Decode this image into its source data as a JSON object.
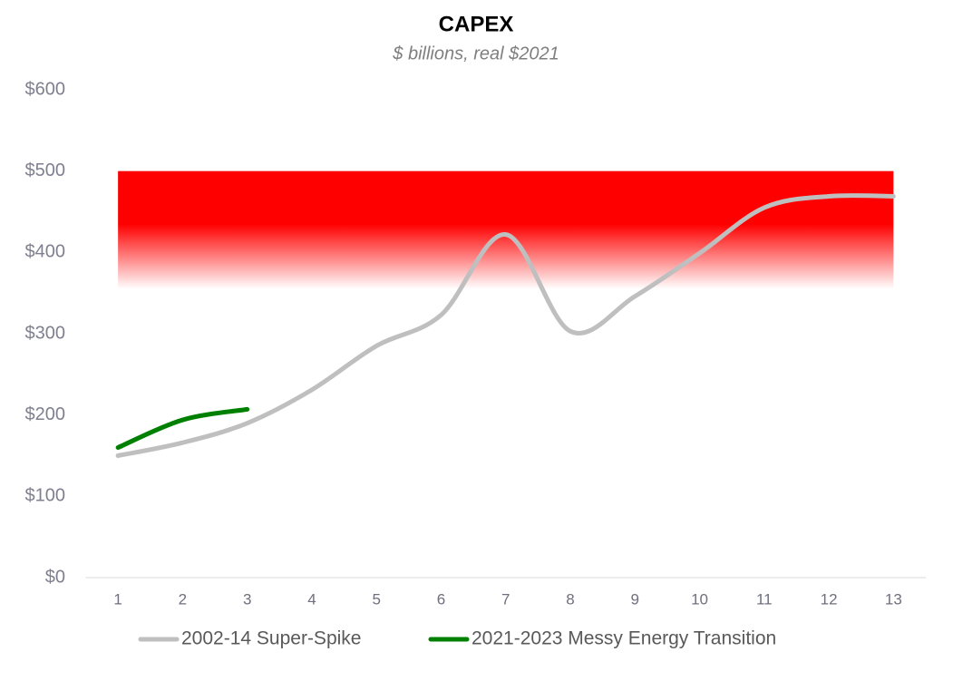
{
  "chart_data": {
    "type": "line",
    "title": "CAPEX",
    "subtitle": "$ billions, real $2021",
    "categories": [
      "1",
      "2",
      "3",
      "4",
      "5",
      "6",
      "7",
      "8",
      "9",
      "10",
      "11",
      "12",
      "13"
    ],
    "series": [
      {
        "name": "2002-14 Super-Spike",
        "color": "#bfbfbf",
        "values": [
          150,
          166,
          190,
          231,
          285,
          323,
          422,
          303,
          346,
          399,
          455,
          469,
          469
        ]
      },
      {
        "name": "2021-2023 Messy Energy Transition",
        "color": "#008000",
        "values": [
          160,
          194,
          207,
          null,
          null,
          null,
          null,
          null,
          null,
          null,
          null,
          null,
          null
        ]
      }
    ],
    "shaded_range": {
      "from": 355,
      "to": 500,
      "color": "#ff0000"
    },
    "ylim": [
      0,
      600
    ],
    "yticks": [
      {
        "value": 0,
        "label": "$0"
      },
      {
        "value": 100,
        "label": "$100"
      },
      {
        "value": 200,
        "label": "$200"
      },
      {
        "value": 300,
        "label": "$300"
      },
      {
        "value": 400,
        "label": "$400"
      },
      {
        "value": 500,
        "label": "$500"
      },
      {
        "value": 600,
        "label": "$600"
      }
    ],
    "grid": false,
    "legend": "bottom"
  }
}
